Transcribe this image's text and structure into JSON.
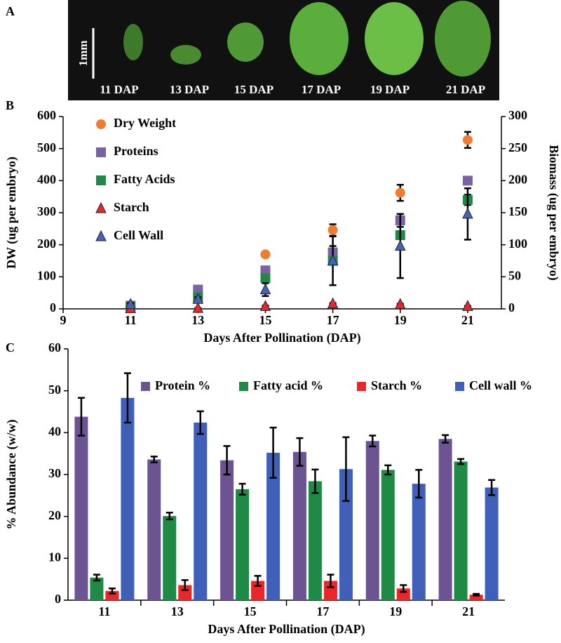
{
  "image_panel": {
    "label": "A",
    "scale_bar": "1mm",
    "captions": [
      "11 DAP",
      "13 DAP",
      "15 DAP",
      "17 DAP",
      "19 DAP",
      "21 DAP"
    ]
  },
  "chart_data": [
    {
      "type": "scatter",
      "panel": "B",
      "xlabel": "Days After Pollination (DAP)",
      "ylabel": "DW (ug per embryo)",
      "y2label": "Biomass (ug per embryo)",
      "xlim": [
        9,
        22
      ],
      "xticks": [
        9,
        11,
        13,
        15,
        17,
        19,
        21
      ],
      "ylim": [
        0,
        600
      ],
      "yticks": [
        0,
        100,
        200,
        300,
        400,
        500,
        600
      ],
      "y2lim": [
        0,
        300
      ],
      "y2ticks": [
        0,
        50,
        100,
        150,
        200,
        250,
        300
      ],
      "legend": "upper-left",
      "x": [
        11,
        13,
        15,
        17,
        19,
        21
      ],
      "series": [
        {
          "name": "Dry Weight",
          "color": "#ef7d30",
          "marker": "circle",
          "values": [
            8,
            58,
            170,
            246,
            362,
            527
          ],
          "errors": [
            3,
            5,
            5,
            18,
            25,
            25
          ]
        },
        {
          "name": "Proteins",
          "color": "#7a62a3",
          "marker": "square",
          "axis": "y2",
          "values": [
            5,
            30,
            60,
            88,
            138,
            200
          ],
          "errors": [
            1,
            2,
            3,
            10,
            10,
            5
          ]
        },
        {
          "name": "Fatty Acids",
          "color": "#1e8a46",
          "marker": "square",
          "axis": "y2",
          "values": [
            3,
            18,
            48,
            75,
            115,
            170
          ],
          "errors": [
            1,
            1,
            2,
            5,
            6,
            8
          ]
        },
        {
          "name": "Starch",
          "color": "#e8272a",
          "marker": "triangle",
          "axis": "y2",
          "values": [
            0.5,
            1,
            4,
            8,
            7,
            4
          ],
          "errors": [
            0.2,
            0.3,
            1,
            1,
            1,
            0.5
          ]
        },
        {
          "name": "Cell Wall",
          "color": "#4663b3",
          "marker": "triangle",
          "axis": "y2",
          "values": [
            7,
            15,
            30,
            75,
            98,
            148
          ],
          "errors": [
            2,
            3,
            10,
            38,
            50,
            40
          ]
        }
      ]
    },
    {
      "type": "bar",
      "panel": "C",
      "xlabel": "Days After Pollination (DAP)",
      "ylabel": "% Abundance (w/w)",
      "ylim": [
        0,
        60
      ],
      "yticks": [
        0,
        10,
        20,
        30,
        40,
        50,
        60
      ],
      "legend": "top",
      "categories": [
        "11",
        "13",
        "15",
        "17",
        "19",
        "21"
      ],
      "series": [
        {
          "name": "Protein %",
          "color": "#6b5491",
          "values": [
            43.8,
            33.6,
            33.4,
            35.4,
            38.0,
            38.5
          ],
          "errors": [
            4.5,
            0.7,
            3.4,
            3.3,
            1.3,
            0.9
          ]
        },
        {
          "name": "Fatty acid %",
          "color": "#1e8a46",
          "values": [
            5.4,
            20.1,
            26.5,
            28.4,
            31.1,
            33.1
          ],
          "errors": [
            0.7,
            0.8,
            1.3,
            2.8,
            1.1,
            0.6
          ]
        },
        {
          "name": "Starch %",
          "color": "#e8272a",
          "values": [
            2.2,
            3.6,
            4.6,
            4.6,
            2.8,
            1.3
          ],
          "errors": [
            0.6,
            1.2,
            1.2,
            1.5,
            0.8,
            0.2
          ]
        },
        {
          "name": "Cell wall %",
          "color": "#3f5fb8",
          "values": [
            48.3,
            42.4,
            35.2,
            31.3,
            27.8,
            26.9
          ],
          "errors": [
            5.9,
            2.7,
            6.0,
            7.6,
            3.3,
            1.8
          ]
        }
      ]
    }
  ]
}
